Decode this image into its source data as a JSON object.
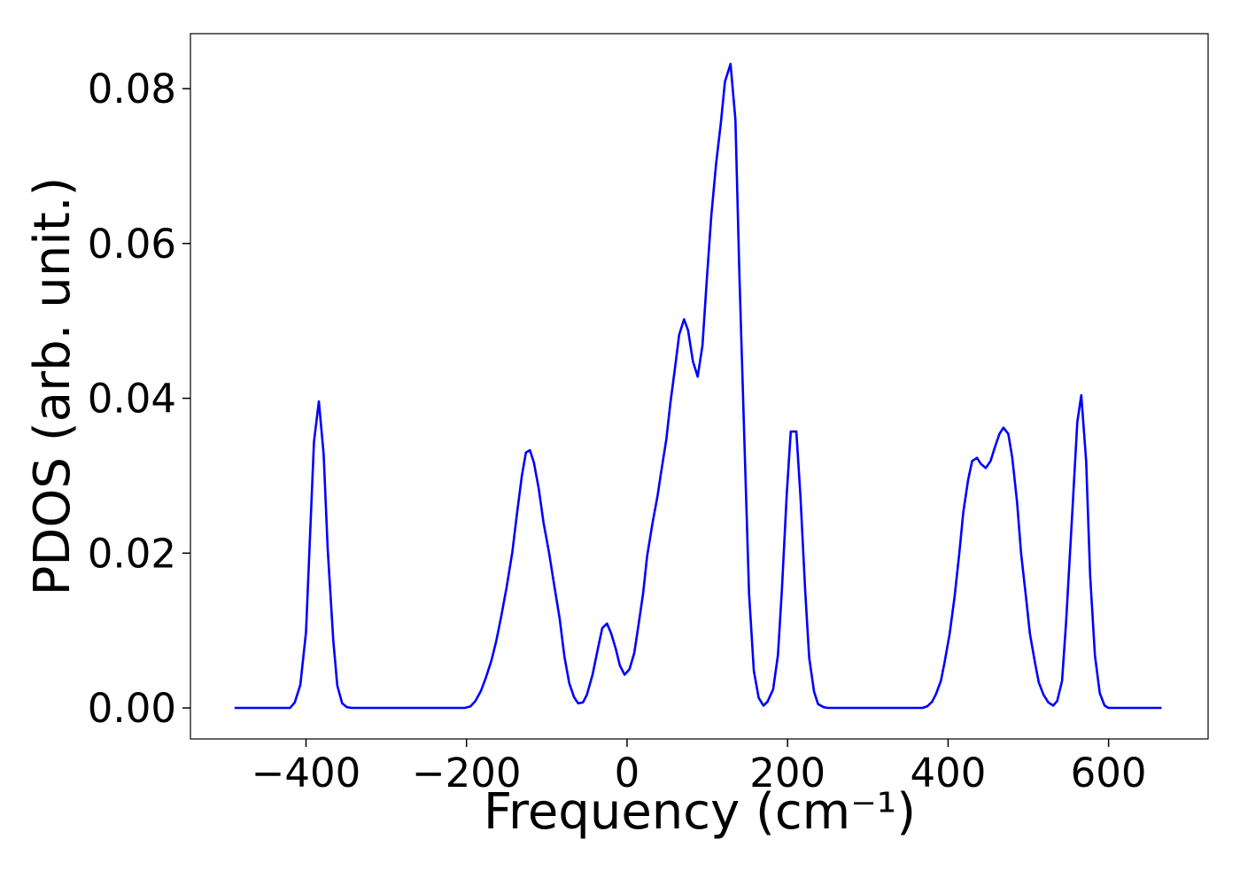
{
  "chart_data": {
    "type": "line",
    "xlabel": "Frequency (cm⁻¹)",
    "ylabel": "PDOS (arb. unit.)",
    "x": [
      -489,
      -420,
      -414,
      -407,
      -400,
      -390,
      -384,
      -378,
      -373,
      -366,
      -361,
      -355,
      -349,
      -343,
      -202,
      -195,
      -189,
      -182,
      -176,
      -169,
      -163,
      -157,
      -150,
      -143,
      -137,
      -131,
      -126,
      -121,
      -116,
      -110,
      -104,
      -97,
      -91,
      -84,
      -78,
      -72,
      -66,
      -61,
      -55,
      -50,
      -43,
      -36,
      -31,
      -25,
      -20,
      -14,
      -9,
      -3,
      3,
      9,
      14,
      20,
      25,
      32,
      38,
      43,
      49,
      54,
      60,
      65,
      71,
      76,
      82,
      88,
      94,
      99,
      105,
      111,
      117,
      122,
      129,
      135,
      140,
      146,
      152,
      158,
      164,
      170,
      175,
      182,
      188,
      193,
      199,
      204,
      211,
      216,
      222,
      227,
      233,
      238,
      245,
      250,
      368,
      374,
      380,
      385,
      391,
      396,
      402,
      408,
      414,
      419,
      425,
      430,
      436,
      441,
      447,
      453,
      458,
      464,
      469,
      475,
      480,
      486,
      491,
      497,
      502,
      508,
      513,
      519,
      525,
      531,
      536,
      542,
      547,
      554,
      561,
      566,
      572,
      577,
      583,
      589,
      595,
      600,
      666
    ],
    "series": [
      {
        "color": "#0000ff",
        "values": [
          0,
          0,
          0.0007,
          0.003,
          0.0098,
          0.0344,
          0.0396,
          0.0328,
          0.0205,
          0.0087,
          0.0029,
          0.0006,
          0.0001,
          0,
          0,
          0.0002,
          0.0009,
          0.0022,
          0.0039,
          0.0061,
          0.0086,
          0.0117,
          0.0156,
          0.0201,
          0.0252,
          0.03,
          0.033,
          0.0333,
          0.0317,
          0.0283,
          0.0239,
          0.02,
          0.016,
          0.0116,
          0.0066,
          0.0032,
          0.0014,
          0.0006,
          0.0007,
          0.0017,
          0.0043,
          0.0078,
          0.0103,
          0.0109,
          0.0097,
          0.0076,
          0.0055,
          0.0043,
          0.005,
          0.0071,
          0.0105,
          0.0148,
          0.0196,
          0.024,
          0.0274,
          0.0308,
          0.0347,
          0.0394,
          0.0441,
          0.0482,
          0.0502,
          0.0488,
          0.0448,
          0.0428,
          0.0468,
          0.0548,
          0.0636,
          0.0703,
          0.0757,
          0.0809,
          0.0832,
          0.076,
          0.056,
          0.0354,
          0.0148,
          0.0048,
          0.0013,
          0.0003,
          0.0008,
          0.0024,
          0.0068,
          0.0153,
          0.0277,
          0.0357,
          0.0357,
          0.0274,
          0.0151,
          0.0065,
          0.0021,
          0.0005,
          0.0001,
          0,
          0,
          0.0002,
          0.0008,
          0.0018,
          0.0035,
          0.0061,
          0.0096,
          0.0143,
          0.02,
          0.0253,
          0.0295,
          0.0319,
          0.0323,
          0.0315,
          0.031,
          0.0319,
          0.0336,
          0.0354,
          0.0362,
          0.0354,
          0.0323,
          0.0266,
          0.0199,
          0.0144,
          0.0096,
          0.006,
          0.0033,
          0.0017,
          0.0007,
          0.0003,
          0.0009,
          0.0035,
          0.011,
          0.0239,
          0.0369,
          0.0404,
          0.0319,
          0.0171,
          0.0068,
          0.0019,
          0.0003,
          0,
          0
        ]
      }
    ],
    "xlim": [
      -544,
      724
    ],
    "ylim": [
      -0.004,
      0.0871
    ],
    "xticks": [
      {
        "value": -400,
        "label": "−400"
      },
      {
        "value": -200,
        "label": "−200"
      },
      0,
      200,
      400,
      600
    ],
    "yticks": [
      {
        "value": 0,
        "label": "0.00"
      },
      0.02,
      0.04,
      0.06,
      0.08
    ],
    "grid": false
  }
}
